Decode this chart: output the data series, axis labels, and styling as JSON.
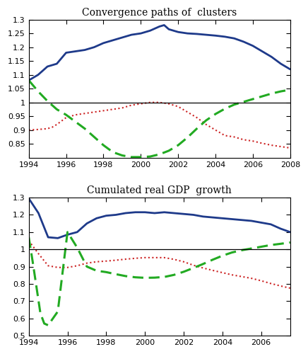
{
  "title1": "Convergence paths of  clusters",
  "title2": "Cumulated real GDP  growth",
  "background_color": "#ffffff",
  "plot1": {
    "xlim": [
      1994,
      2008
    ],
    "ylim": [
      0.8,
      1.3
    ],
    "yticks": [
      0.85,
      0.9,
      0.95,
      1.0,
      1.05,
      1.1,
      1.15,
      1.2,
      1.25,
      1.3
    ],
    "ytick_labels": [
      "0.85",
      "0.9",
      "0.95",
      "1",
      "1.05",
      "1.1",
      "1.15",
      "1.2",
      "1.25",
      "1.3"
    ],
    "hline": 1.0,
    "blue_x": [
      1994,
      1994.5,
      1995,
      1995.25,
      1995.5,
      1996,
      1996.5,
      1997,
      1997.5,
      1998,
      1998.5,
      1999,
      1999.5,
      2000,
      2000.5,
      2001,
      2001.25,
      2001.5,
      2002,
      2002.5,
      2003,
      2003.5,
      2004,
      2004.5,
      2005,
      2005.5,
      2006,
      2006.5,
      2007,
      2007.5,
      2008
    ],
    "blue_y": [
      1.08,
      1.1,
      1.13,
      1.135,
      1.14,
      1.18,
      1.185,
      1.19,
      1.2,
      1.215,
      1.225,
      1.235,
      1.245,
      1.25,
      1.26,
      1.275,
      1.28,
      1.265,
      1.255,
      1.25,
      1.248,
      1.245,
      1.242,
      1.238,
      1.232,
      1.22,
      1.205,
      1.185,
      1.165,
      1.14,
      1.12
    ],
    "red_x": [
      1994,
      1994.5,
      1995,
      1995.25,
      1995.5,
      1996,
      1996.5,
      1997,
      1997.5,
      1998,
      1998.5,
      1999,
      1999.5,
      2000,
      2000.5,
      2001,
      2001.5,
      2002,
      2002.5,
      2003,
      2003.5,
      2004,
      2004.5,
      2005,
      2005.5,
      2006,
      2006.5,
      2007,
      2007.5,
      2008
    ],
    "red_y": [
      0.9,
      0.902,
      0.905,
      0.91,
      0.92,
      0.945,
      0.955,
      0.96,
      0.965,
      0.97,
      0.975,
      0.98,
      0.99,
      0.995,
      1.0,
      1.0,
      0.995,
      0.985,
      0.965,
      0.945,
      0.92,
      0.9,
      0.88,
      0.875,
      0.865,
      0.86,
      0.852,
      0.845,
      0.84,
      0.835
    ],
    "green_x": [
      1994,
      1994.5,
      1995,
      1995.5,
      1996,
      1996.5,
      1997,
      1997.5,
      1998,
      1998.5,
      1999,
      1999.5,
      2000,
      2000.5,
      2001,
      2001.5,
      2002,
      2002.5,
      2003,
      2003.5,
      2004,
      2004.5,
      2005,
      2005.5,
      2006,
      2006.5,
      2007,
      2007.5,
      2008
    ],
    "green_y": [
      1.08,
      1.04,
      1.005,
      0.975,
      0.955,
      0.93,
      0.905,
      0.875,
      0.845,
      0.82,
      0.808,
      0.802,
      0.802,
      0.804,
      0.812,
      0.825,
      0.845,
      0.873,
      0.905,
      0.935,
      0.958,
      0.977,
      0.992,
      1.002,
      1.012,
      1.022,
      1.032,
      1.04,
      1.046
    ]
  },
  "plot2": {
    "xlim": [
      1994,
      2007.5
    ],
    "ylim": [
      0.5,
      1.3
    ],
    "yticks": [
      0.5,
      0.6,
      0.7,
      0.8,
      0.9,
      1.0,
      1.1,
      1.2,
      1.3
    ],
    "ytick_labels": [
      "0.5",
      "0.6",
      "0.7",
      "0.8",
      "0.9",
      "1",
      "1.1",
      "1.2",
      "1.3"
    ],
    "hline": 1.0,
    "blue_x": [
      1994,
      1994.5,
      1995,
      1995.5,
      1996,
      1996.5,
      1997,
      1997.5,
      1998,
      1998.5,
      1999,
      1999.5,
      2000,
      2000.5,
      2001,
      2001.5,
      2002,
      2002.5,
      2003,
      2003.5,
      2004,
      2004.5,
      2005,
      2005.5,
      2006,
      2006.5,
      2007,
      2007.5
    ],
    "blue_y": [
      1.295,
      1.21,
      1.07,
      1.065,
      1.085,
      1.1,
      1.15,
      1.18,
      1.195,
      1.2,
      1.21,
      1.215,
      1.215,
      1.21,
      1.215,
      1.21,
      1.205,
      1.2,
      1.19,
      1.185,
      1.18,
      1.175,
      1.17,
      1.165,
      1.155,
      1.145,
      1.12,
      1.1
    ],
    "red_x": [
      1994,
      1994.5,
      1995,
      1995.5,
      1996,
      1996.5,
      1997,
      1997.5,
      1998,
      1998.5,
      1999,
      1999.5,
      2000,
      2000.5,
      2001,
      2001.5,
      2002,
      2002.5,
      2003,
      2003.5,
      2004,
      2004.5,
      2005,
      2005.5,
      2006,
      2006.5,
      2007,
      2007.5
    ],
    "red_y": [
      1.05,
      0.975,
      0.905,
      0.895,
      0.895,
      0.905,
      0.92,
      0.928,
      0.932,
      0.937,
      0.943,
      0.948,
      0.952,
      0.952,
      0.952,
      0.942,
      0.928,
      0.908,
      0.892,
      0.878,
      0.865,
      0.852,
      0.842,
      0.832,
      0.818,
      0.802,
      0.788,
      0.775
    ],
    "green_x": [
      1994,
      1994.2,
      1994.4,
      1994.6,
      1994.8,
      1995,
      1995.5,
      1996,
      1996.5,
      1997,
      1997.5,
      1998,
      1998.5,
      1999,
      1999.5,
      2000,
      2000.5,
      2001,
      2001.5,
      2002,
      2002.5,
      2003,
      2003.5,
      2004,
      2004.5,
      2005,
      2005.5,
      2006,
      2006.5,
      2007,
      2007.5
    ],
    "green_y": [
      1.07,
      0.93,
      0.78,
      0.63,
      0.57,
      0.56,
      0.64,
      1.1,
      1.01,
      0.9,
      0.876,
      0.868,
      0.856,
      0.845,
      0.838,
      0.835,
      0.836,
      0.84,
      0.852,
      0.87,
      0.892,
      0.915,
      0.94,
      0.963,
      0.982,
      0.995,
      1.005,
      1.015,
      1.025,
      1.032,
      1.04
    ]
  }
}
